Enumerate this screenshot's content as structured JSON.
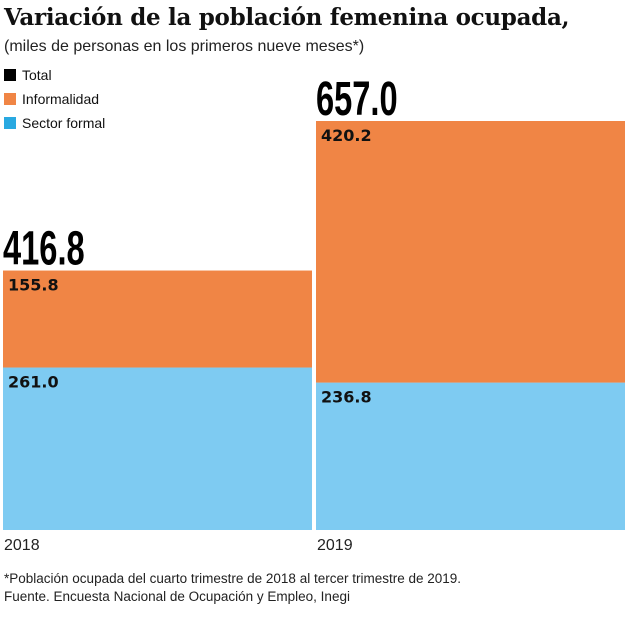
{
  "chart_data": {
    "type": "bar",
    "stacked": true,
    "title": "Variación de la población femenina ocupada,",
    "subtitle": "(miles de personas en los primeros nueve meses*)",
    "categories": [
      "2018",
      "2019"
    ],
    "totals": [
      "416.8",
      "657.0"
    ],
    "series": [
      {
        "name": "Sector formal",
        "color": "#7ecbf2",
        "values": [
          261.0,
          236.8
        ],
        "labels": [
          "261.0",
          "236.8"
        ]
      },
      {
        "name": "Informalidad",
        "color": "#f08545",
        "values": [
          155.8,
          420.2
        ],
        "labels": [
          "155.8",
          "420.2"
        ]
      }
    ],
    "legend": [
      {
        "name": "Total",
        "color": "#000000"
      },
      {
        "name": "Informalidad",
        "color": "#f08545"
      },
      {
        "name": "Sector formal",
        "color": "#29a9e1"
      }
    ],
    "legend_position": "top-left",
    "grid": false,
    "ylim": [
      0,
      657
    ]
  },
  "footnote": "*Población ocupada del cuarto trimestre de 2018 al tercer trimestre de 2019.",
  "source": "Fuente. Encuesta Nacional de Ocupación y Empleo, Inegi"
}
